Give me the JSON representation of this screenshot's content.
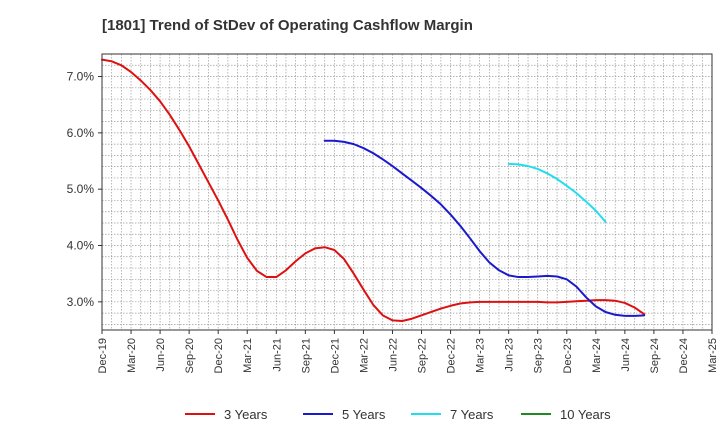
{
  "chart_data": {
    "type": "line",
    "title": "[1801]  Trend of StDev of Operating Cashflow Margin",
    "xlabel": "",
    "ylabel": "",
    "x_ticks": [
      "Dec-19",
      "Mar-20",
      "Jun-20",
      "Sep-20",
      "Dec-20",
      "Mar-21",
      "Jun-21",
      "Sep-21",
      "Dec-21",
      "Mar-22",
      "Jun-22",
      "Sep-22",
      "Dec-22",
      "Mar-23",
      "Jun-23",
      "Sep-23",
      "Dec-23",
      "Mar-24",
      "Jun-24",
      "Sep-24",
      "Dec-24",
      "Mar-25"
    ],
    "y_ticks": [
      "3.0%",
      "4.0%",
      "5.0%",
      "6.0%",
      "7.0%"
    ],
    "ylim": [
      2.5,
      7.4
    ],
    "grid": true,
    "legend_position": "bottom",
    "series": [
      {
        "name": "3 Years",
        "color": "#dd1111",
        "points": [
          [
            "Dec-19",
            7.3
          ],
          [
            "Jan-20",
            7.27
          ],
          [
            "Feb-20",
            7.2
          ],
          [
            "Mar-20",
            7.08
          ],
          [
            "Apr-20",
            6.93
          ],
          [
            "May-20",
            6.76
          ],
          [
            "Jun-20",
            6.56
          ],
          [
            "Jul-20",
            6.32
          ],
          [
            "Aug-20",
            6.05
          ],
          [
            "Sep-20",
            5.76
          ],
          [
            "Oct-20",
            5.44
          ],
          [
            "Nov-20",
            5.12
          ],
          [
            "Dec-20",
            4.8
          ],
          [
            "Jan-21",
            4.46
          ],
          [
            "Feb-21",
            4.1
          ],
          [
            "Mar-21",
            3.78
          ],
          [
            "Apr-21",
            3.55
          ],
          [
            "May-21",
            3.44
          ],
          [
            "Jun-21",
            3.44
          ],
          [
            "Jul-21",
            3.56
          ],
          [
            "Aug-21",
            3.72
          ],
          [
            "Sep-21",
            3.86
          ],
          [
            "Oct-21",
            3.95
          ],
          [
            "Nov-21",
            3.97
          ],
          [
            "Dec-21",
            3.92
          ],
          [
            "Jan-22",
            3.76
          ],
          [
            "Feb-22",
            3.5
          ],
          [
            "Mar-22",
            3.22
          ],
          [
            "Apr-22",
            2.95
          ],
          [
            "May-22",
            2.76
          ],
          [
            "Jun-22",
            2.67
          ],
          [
            "Jul-22",
            2.66
          ],
          [
            "Aug-22",
            2.7
          ],
          [
            "Sep-22",
            2.76
          ],
          [
            "Oct-22",
            2.82
          ],
          [
            "Nov-22",
            2.88
          ],
          [
            "Dec-22",
            2.93
          ],
          [
            "Jan-23",
            2.97
          ],
          [
            "Feb-23",
            2.99
          ],
          [
            "Mar-23",
            3.0
          ],
          [
            "Apr-23",
            3.0
          ],
          [
            "May-23",
            3.0
          ],
          [
            "Jun-23",
            3.0
          ],
          [
            "Jul-23",
            3.0
          ],
          [
            "Aug-23",
            3.0
          ],
          [
            "Sep-23",
            3.0
          ],
          [
            "Oct-23",
            2.99
          ],
          [
            "Nov-23",
            2.99
          ],
          [
            "Dec-23",
            3.0
          ],
          [
            "Jan-24",
            3.01
          ],
          [
            "Feb-24",
            3.02
          ],
          [
            "Mar-24",
            3.03
          ],
          [
            "Apr-24",
            3.03
          ],
          [
            "May-24",
            3.02
          ],
          [
            "Jun-24",
            2.98
          ],
          [
            "Jul-24",
            2.9
          ],
          [
            "Aug-24",
            2.78
          ]
        ]
      },
      {
        "name": "5 Years",
        "color": "#1a1acc",
        "points": [
          [
            "Nov-21",
            5.86
          ],
          [
            "Dec-21",
            5.86
          ],
          [
            "Jan-22",
            5.84
          ],
          [
            "Feb-22",
            5.8
          ],
          [
            "Mar-22",
            5.73
          ],
          [
            "Apr-22",
            5.64
          ],
          [
            "May-22",
            5.53
          ],
          [
            "Jun-22",
            5.41
          ],
          [
            "Jul-22",
            5.28
          ],
          [
            "Aug-22",
            5.15
          ],
          [
            "Sep-22",
            5.02
          ],
          [
            "Oct-22",
            4.88
          ],
          [
            "Nov-22",
            4.73
          ],
          [
            "Dec-22",
            4.55
          ],
          [
            "Jan-23",
            4.35
          ],
          [
            "Feb-23",
            4.13
          ],
          [
            "Mar-23",
            3.9
          ],
          [
            "Apr-23",
            3.7
          ],
          [
            "May-23",
            3.56
          ],
          [
            "Jun-23",
            3.47
          ],
          [
            "Jul-23",
            3.44
          ],
          [
            "Aug-23",
            3.44
          ],
          [
            "Sep-23",
            3.45
          ],
          [
            "Oct-23",
            3.46
          ],
          [
            "Nov-23",
            3.45
          ],
          [
            "Dec-23",
            3.4
          ],
          [
            "Jan-24",
            3.27
          ],
          [
            "Feb-24",
            3.08
          ],
          [
            "Mar-24",
            2.92
          ],
          [
            "Apr-24",
            2.82
          ],
          [
            "May-24",
            2.77
          ],
          [
            "Jun-24",
            2.75
          ],
          [
            "Jul-24",
            2.75
          ],
          [
            "Aug-24",
            2.76
          ]
        ]
      },
      {
        "name": "7 Years",
        "color": "#22ddee",
        "points": [
          [
            "Jun-23",
            5.45
          ],
          [
            "Jul-23",
            5.44
          ],
          [
            "Aug-23",
            5.41
          ],
          [
            "Sep-23",
            5.36
          ],
          [
            "Oct-23",
            5.28
          ],
          [
            "Nov-23",
            5.18
          ],
          [
            "Dec-23",
            5.06
          ],
          [
            "Jan-24",
            4.93
          ],
          [
            "Feb-24",
            4.78
          ],
          [
            "Mar-24",
            4.62
          ],
          [
            "Apr-24",
            4.42
          ]
        ]
      },
      {
        "name": "10 Years",
        "color": "#228822",
        "points": []
      }
    ]
  }
}
